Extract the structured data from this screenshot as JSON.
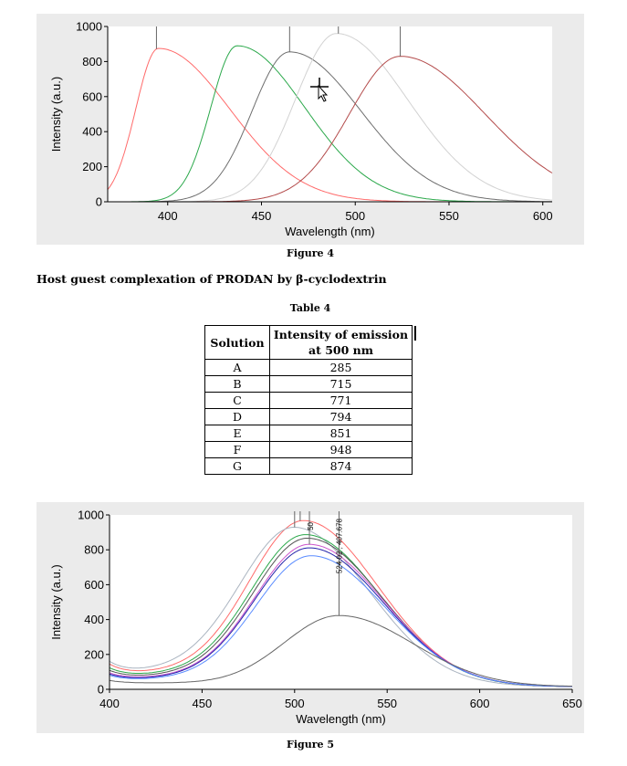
{
  "figure4": {
    "caption": "Figure 4",
    "chart_data": {
      "type": "line",
      "xlabel": "Wavelength (nm)",
      "ylabel": "Intensity (a.u.)",
      "xlim": [
        368,
        605
      ],
      "ylim": [
        0,
        1000
      ],
      "x_ticks": [
        "400",
        "450",
        "500",
        "550",
        "600"
      ],
      "y_ticks": [
        "0",
        "200",
        "400",
        "600",
        "800",
        "1000"
      ],
      "grid": false,
      "series": [
        {
          "color": "#ff6a6a",
          "peak_x": 395,
          "peak_y": 875,
          "lw": 12,
          "rw": 38,
          "start_x": 368,
          "end_x": 600
        },
        {
          "color": "#2aa84a",
          "peak_x": 437,
          "peak_y": 890,
          "lw": 14,
          "rw": 36,
          "start_x": 372,
          "end_x": 605
        },
        {
          "color": "#6e6e6e",
          "peak_x": 465,
          "peak_y": 855,
          "lw": 20,
          "rw": 38,
          "start_x": 372,
          "end_x": 605
        },
        {
          "color": "#d2d2d2",
          "peak_x": 490,
          "peak_y": 960,
          "lw": 22,
          "rw": 38,
          "start_x": 372,
          "end_x": 605
        },
        {
          "color": "#b34a4a",
          "peak_x": 524,
          "peak_y": 830,
          "lw": 27,
          "rw": 45,
          "start_x": 372,
          "end_x": 605
        }
      ],
      "markers_x": [
        394,
        465,
        491,
        524
      ]
    }
  },
  "heading": "Host guest complexation of PRODAN by β-cyclodextrin",
  "table": {
    "caption": "Table 4",
    "headers": [
      "Solution",
      "Intensity of emission at 500 nm"
    ],
    "rows": [
      [
        "A",
        "285"
      ],
      [
        "B",
        "715"
      ],
      [
        "C",
        "771"
      ],
      [
        "D",
        "794"
      ],
      [
        "E",
        "851"
      ],
      [
        "F",
        "948"
      ],
      [
        "G",
        "874"
      ]
    ]
  },
  "figure5": {
    "caption": "Figure 5",
    "chart_data": {
      "type": "line",
      "xlabel": "Wavelength (nm)",
      "ylabel": "Intensity (a.u.)",
      "xlim": [
        400,
        650
      ],
      "ylim": [
        0,
        1000
      ],
      "x_ticks": [
        "400",
        "450",
        "500",
        "550",
        "600",
        "650"
      ],
      "y_ticks": [
        "0",
        "200",
        "400",
        "600",
        "800",
        "1000"
      ],
      "grid": false,
      "annotations": [
        "50",
        "524.02 , 407.678"
      ],
      "series": [
        {
          "color": "#ff6a6a",
          "peak_x": 505,
          "peak_y": 950,
          "base": 90
        },
        {
          "color": "#aab4c0",
          "peak_x": 500,
          "peak_y": 910,
          "base": 100
        },
        {
          "color": "#2aa84a",
          "peak_x": 506,
          "peak_y": 870,
          "base": 75
        },
        {
          "color": "#555555",
          "peak_x": 507,
          "peak_y": 850,
          "base": 65
        },
        {
          "color": "#cc55cc",
          "peak_x": 508,
          "peak_y": 815,
          "base": 55
        },
        {
          "color": "#2222aa",
          "peak_x": 508,
          "peak_y": 795,
          "base": 50
        },
        {
          "color": "#5a8cff",
          "peak_x": 509,
          "peak_y": 750,
          "base": 45
        },
        {
          "color": "#666666",
          "peak_x": 524,
          "peak_y": 408,
          "base": 25
        }
      ],
      "markers_x": [
        500,
        503,
        508,
        524
      ]
    }
  }
}
